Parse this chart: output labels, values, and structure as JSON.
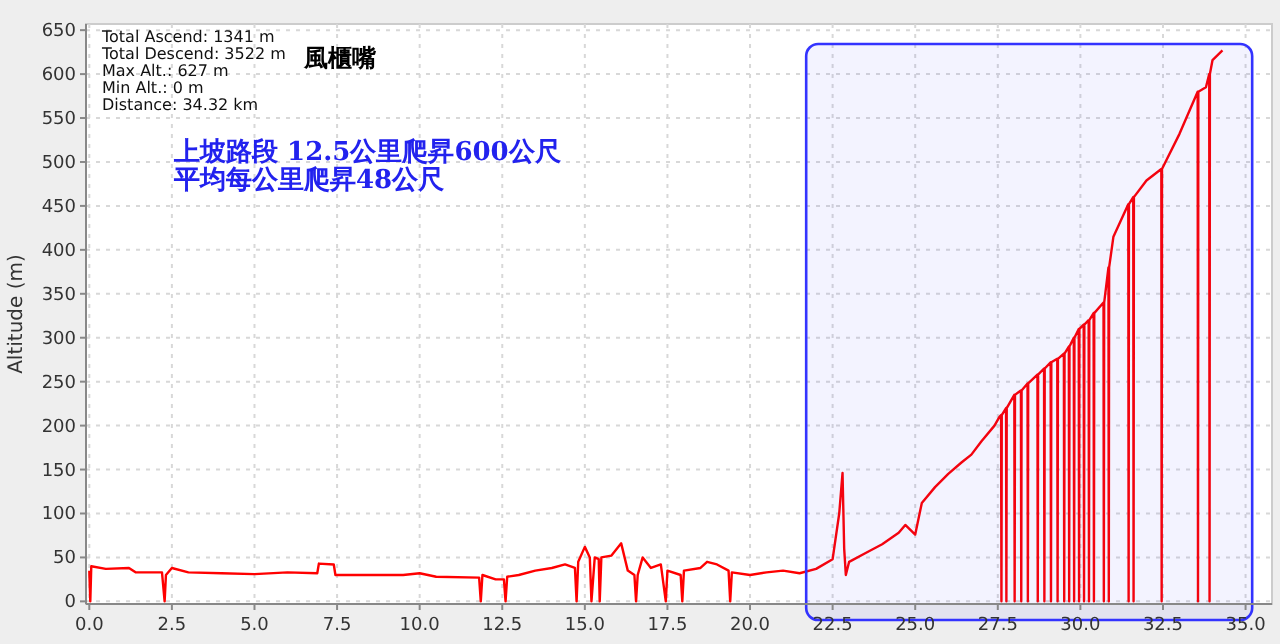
{
  "chart_data": {
    "type": "line",
    "ylabel": "Altitude (m)",
    "annotations": [
      "Total Ascend: 1341 m",
      "Total Descend: 3522 m",
      "Max Alt.: 627 m",
      "Min Alt.: 0 m",
      "Distance: 34.32 km",
      "風櫃嘴",
      "上坡路段 12.5公里爬昇600公尺",
      "平均每公里爬昇48公尺"
    ],
    "x": [
      0,
      0.03,
      0.06,
      0.5,
      1.2,
      1.4,
      2.2,
      2.28,
      2.32,
      2.5,
      3,
      4,
      5,
      6,
      6.9,
      6.95,
      7.4,
      7.45,
      8.5,
      9.5,
      10,
      10.5,
      11.8,
      11.85,
      11.9,
      12.3,
      12.55,
      12.6,
      12.65,
      13,
      13.5,
      14,
      14.4,
      14.7,
      14.75,
      14.8,
      15,
      15.15,
      15.2,
      15.3,
      15.42,
      15.45,
      15.5,
      15.8,
      16.1,
      16.3,
      16.5,
      16.55,
      16.6,
      16.75,
      17,
      17.3,
      17.45,
      17.5,
      17.9,
      17.95,
      18,
      18.5,
      18.7,
      19,
      19.35,
      19.4,
      19.45,
      20,
      20.5,
      21,
      21.5,
      22,
      22.5,
      22.7,
      22.8,
      22.85,
      22.9,
      23,
      23.5,
      24,
      24.5,
      24.7,
      25,
      25.2,
      25.6,
      26,
      26.4,
      26.7,
      27,
      27.4,
      27.55,
      27.6,
      27.61,
      27.62,
      27.75,
      27.76,
      27.77,
      28,
      28.01,
      28.02,
      28.2,
      28.21,
      28.22,
      28.4,
      28.41,
      28.42,
      28.7,
      28.71,
      28.72,
      28.9,
      28.91,
      28.92,
      29.1,
      29.11,
      29.12,
      29.3,
      29.31,
      29.32,
      29.5,
      29.51,
      29.52,
      29.65,
      29.66,
      29.67,
      29.8,
      29.81,
      29.82,
      29.95,
      29.96,
      29.97,
      30.1,
      30.11,
      30.12,
      30.25,
      30.26,
      30.27,
      30.4,
      30.41,
      30.42,
      30.7,
      30.71,
      30.72,
      30.85,
      30.86,
      30.87,
      31,
      31.45,
      31.46,
      31.47,
      31.6,
      31.61,
      31.62,
      32,
      32.45,
      32.46,
      32.47,
      33,
      33.55,
      33.56,
      33.57,
      33.8,
      33.9,
      33.91,
      33.92,
      34,
      34.3
    ],
    "series": [
      {
        "color": "#ff0000",
        "values": [
          35,
          0,
          40,
          37,
          38,
          33,
          33,
          0,
          30,
          38,
          33,
          32,
          31,
          33,
          32,
          43,
          42,
          30,
          30,
          30,
          32,
          28,
          27,
          0,
          30,
          25,
          25,
          0,
          28,
          30,
          35,
          38,
          42,
          38,
          0,
          45,
          62,
          50,
          0,
          50,
          48,
          0,
          50,
          52,
          66,
          35,
          30,
          0,
          30,
          50,
          38,
          42,
          0,
          35,
          30,
          0,
          35,
          38,
          45,
          42,
          35,
          0,
          33,
          30,
          33,
          35,
          32,
          37,
          48,
          100,
          146,
          60,
          30,
          45,
          55,
          65,
          78,
          87,
          76,
          112,
          130,
          145,
          158,
          167,
          182,
          200,
          210,
          212,
          0,
          212,
          220,
          0,
          220,
          235,
          0,
          235,
          240,
          0,
          240,
          248,
          0,
          248,
          258,
          0,
          258,
          265,
          0,
          265,
          272,
          0,
          272,
          276,
          0,
          276,
          282,
          0,
          282,
          290,
          0,
          290,
          300,
          0,
          300,
          310,
          0,
          310,
          315,
          0,
          315,
          320,
          0,
          320,
          328,
          0,
          328,
          340,
          0,
          340,
          380,
          0,
          380,
          415,
          452,
          0,
          452,
          460,
          0,
          460,
          479,
          492,
          0,
          492,
          532,
          580,
          0,
          580,
          585,
          600,
          0,
          600,
          616,
          627
        ]
      }
    ],
    "xlim": [
      -0.1,
      35.8
    ],
    "ylim": [
      -3,
      657
    ],
    "xticks": [
      {
        "value": 0,
        "label": "0.0"
      },
      {
        "value": 2.5,
        "label": "2.5"
      },
      {
        "value": 5,
        "label": "5.0"
      },
      {
        "value": 7.5,
        "label": "7.5"
      },
      {
        "value": 10,
        "label": "10.0"
      },
      {
        "value": 12.5,
        "label": "12.5"
      },
      {
        "value": 15,
        "label": "15.0"
      },
      {
        "value": 17.5,
        "label": "17.5"
      },
      {
        "value": 20,
        "label": "20.0"
      },
      {
        "value": 22.5,
        "label": "22.5"
      },
      {
        "value": 25,
        "label": "25.0"
      },
      {
        "value": 27.5,
        "label": "27.5"
      },
      {
        "value": 30,
        "label": "30.0"
      },
      {
        "value": 32.5,
        "label": "32.5"
      },
      {
        "value": 35,
        "label": "35.0"
      }
    ],
    "yticks": [
      0,
      50,
      100,
      150,
      200,
      250,
      300,
      350,
      400,
      450,
      500,
      550,
      600,
      650
    ],
    "grid": true,
    "marker": "none",
    "line_style": "solid",
    "bands": [
      {
        "axis": "x",
        "from": 21.7,
        "to": 35.2,
        "color": "#3333ff"
      }
    ]
  }
}
